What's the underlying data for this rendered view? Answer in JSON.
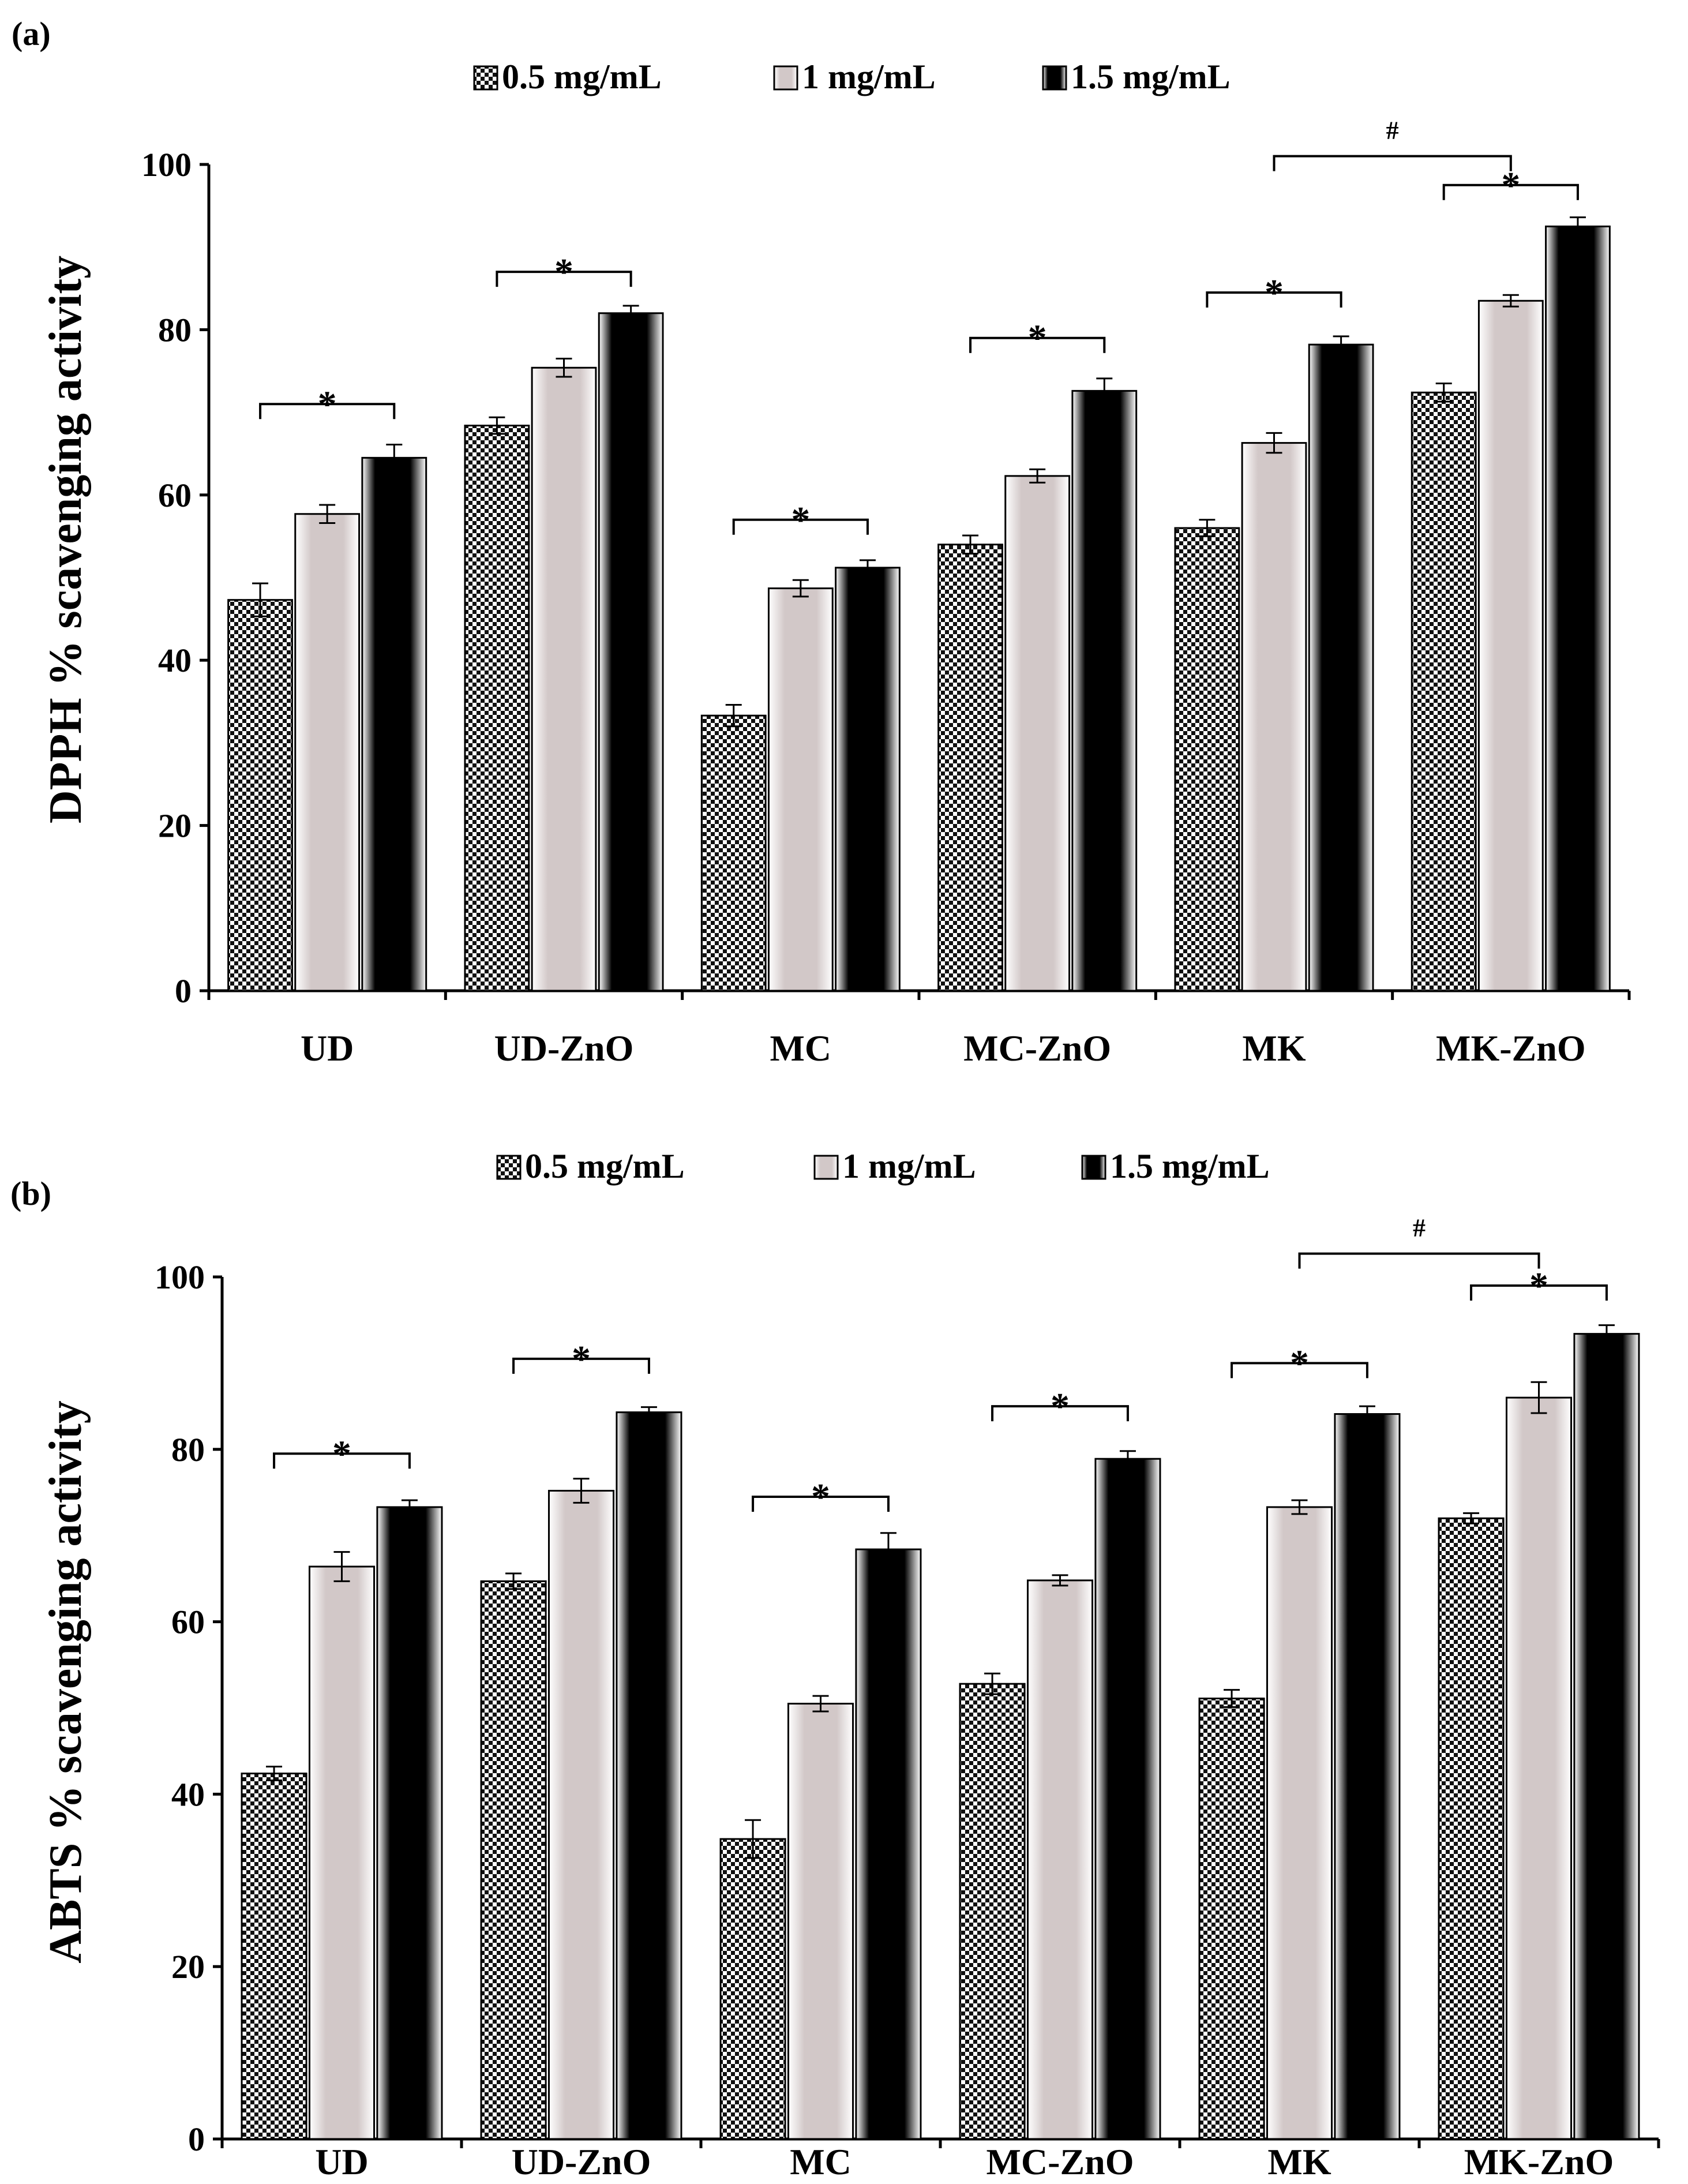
{
  "legend_series": [
    "0.5 mg/mL",
    "1 mg/mL",
    "1.5 mg/mL"
  ],
  "colors": {
    "axis": "#000000",
    "bar_outline": "#000000",
    "series_light": "#d2c8c8",
    "series_dark": "#000000",
    "checker_dark": "#111111",
    "checker_light": "#ffffff"
  },
  "chart_data": [
    {
      "type": "bar",
      "panel_label": "(a)",
      "ylabel": "DPPH % scavenging activity",
      "xlabel": "",
      "ylim": [
        0,
        100
      ],
      "yticks": [
        0,
        20,
        40,
        60,
        80,
        100
      ],
      "categories": [
        "UD",
        "UD-ZnO",
        "MC",
        "MC-ZnO",
        "MK",
        "MK-ZnO"
      ],
      "series": [
        {
          "name": "0.5 mg/mL",
          "values": [
            47.3,
            68.4,
            33.3,
            54.0,
            56.0,
            72.4
          ],
          "errors": [
            2.0,
            1.0,
            1.3,
            1.1,
            1.0,
            1.1
          ]
        },
        {
          "name": "1 mg/mL",
          "values": [
            57.7,
            75.4,
            48.7,
            62.3,
            66.3,
            83.5
          ],
          "errors": [
            1.1,
            1.1,
            1.0,
            0.8,
            1.2,
            0.7
          ]
        },
        {
          "name": "1.5 mg/mL",
          "values": [
            64.5,
            82.0,
            51.2,
            72.6,
            78.2,
            92.5
          ],
          "errors": [
            1.6,
            0.9,
            0.9,
            1.5,
            1.0,
            1.1
          ]
        }
      ],
      "significance": [
        {
          "label": "*",
          "category": 0,
          "from_series": 0,
          "to_series": 2,
          "level": 71.0
        },
        {
          "label": "*",
          "category": 1,
          "from_series": 0,
          "to_series": 2,
          "level": 87.0
        },
        {
          "label": "*",
          "category": 2,
          "from_series": 0,
          "to_series": 2,
          "level": 57.0
        },
        {
          "label": "*",
          "category": 3,
          "from_series": 0,
          "to_series": 2,
          "level": 79.0
        },
        {
          "label": "*",
          "category": 4,
          "from_series": 0,
          "to_series": 2,
          "level": 84.5
        },
        {
          "label": "*",
          "category": 5,
          "from_series": 0,
          "to_series": 2,
          "level": 97.5
        },
        {
          "label": "#",
          "from_category": 4,
          "to_category": 5,
          "level": 101.0
        }
      ]
    },
    {
      "type": "bar",
      "panel_label": "(b)",
      "ylabel": "ABTS % scavenging activity",
      "xlabel": "",
      "ylim": [
        0,
        100
      ],
      "yticks": [
        0,
        20,
        40,
        60,
        80,
        100
      ],
      "categories": [
        "UD",
        "UD-ZnO",
        "MC",
        "MC-ZnO",
        "MK",
        "MK-ZnO"
      ],
      "series": [
        {
          "name": "0.5 mg/mL",
          "values": [
            42.4,
            64.7,
            34.8,
            52.8,
            51.1,
            72.0
          ],
          "errors": [
            0.8,
            0.9,
            2.2,
            1.2,
            1.0,
            0.6
          ]
        },
        {
          "name": "1 mg/mL",
          "values": [
            66.4,
            75.2,
            50.5,
            64.8,
            73.3,
            86.0
          ],
          "errors": [
            1.7,
            1.4,
            0.9,
            0.6,
            0.8,
            1.8
          ]
        },
        {
          "name": "1.5 mg/mL",
          "values": [
            73.3,
            84.3,
            68.4,
            78.9,
            84.1,
            93.4
          ],
          "errors": [
            0.8,
            0.6,
            1.9,
            0.9,
            0.9,
            1.0
          ]
        }
      ],
      "significance": [
        {
          "label": "*",
          "category": 0,
          "from_series": 0,
          "to_series": 2,
          "level": 79.5
        },
        {
          "label": "*",
          "category": 1,
          "from_series": 0,
          "to_series": 2,
          "level": 90.5
        },
        {
          "label": "*",
          "category": 2,
          "from_series": 0,
          "to_series": 2,
          "level": 74.5
        },
        {
          "label": "*",
          "category": 3,
          "from_series": 0,
          "to_series": 2,
          "level": 85.0
        },
        {
          "label": "*",
          "category": 4,
          "from_series": 0,
          "to_series": 2,
          "level": 90.0
        },
        {
          "label": "*",
          "category": 5,
          "from_series": 0,
          "to_series": 2,
          "level": 99.0
        },
        {
          "label": "#",
          "from_category": 4,
          "to_category": 5,
          "level": 102.7
        }
      ]
    }
  ]
}
